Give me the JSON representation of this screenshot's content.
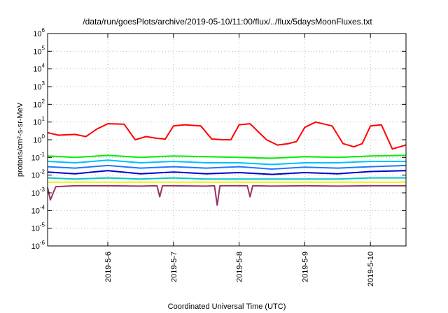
{
  "chart_data": {
    "type": "line",
    "title": "/data/run/goesPlots/archive/2019-05-10/11:00/flux/../flux/5daysMoonFluxes.txt",
    "xlabel": "Coordinated Universal Time (UTC)",
    "ylabel": "protons/cm²-s-sr-MeV",
    "y_scale": "log",
    "ylim": [
      1e-06,
      1000000.0
    ],
    "xlim": [
      "2019-05-05 02:00",
      "2019-05-10 13:00"
    ],
    "grid": true,
    "legend": "none",
    "x_ticks": [
      "2019-5-6",
      "2019-5-7",
      "2019-5-8",
      "2019-5-9",
      "2019-5-10"
    ],
    "y_ticks": [
      {
        "base": "10",
        "exp": "6"
      },
      {
        "base": "10",
        "exp": "5"
      },
      {
        "base": "10",
        "exp": "4"
      },
      {
        "base": "10",
        "exp": "3"
      },
      {
        "base": "10",
        "exp": "2"
      },
      {
        "base": "10",
        "exp": "1"
      },
      {
        "base": "10",
        "exp": "0"
      },
      {
        "base": "10",
        "exp": "-1"
      },
      {
        "base": "10",
        "exp": "-2"
      },
      {
        "base": "10",
        "exp": "-3"
      },
      {
        "base": "10",
        "exp": "-4"
      },
      {
        "base": "10",
        "exp": "-5"
      },
      {
        "base": "10",
        "exp": "-6"
      }
    ],
    "series": [
      {
        "color": "#ff0000",
        "x": [
          "05-05 02:00",
          "05-05 06:00",
          "05-05 12:00",
          "05-05 16:00",
          "05-05 20:00",
          "05-06 00:00",
          "05-06 06:00",
          "05-06 10:00",
          "05-06 14:00",
          "05-06 18:00",
          "05-06 21:00",
          "05-07 00:00",
          "05-07 04:00",
          "05-07 10:00",
          "05-07 14:00",
          "05-07 18:00",
          "05-07 21:00",
          "05-08 00:00",
          "05-08 04:00",
          "05-08 10:00",
          "05-08 14:00",
          "05-08 18:00",
          "05-08 21:00",
          "05-09 00:00",
          "05-09 04:00",
          "05-09 10:00",
          "05-09 14:00",
          "05-09 18:00",
          "05-09 21:00",
          "05-10 00:00",
          "05-10 04:00",
          "05-10 08:00",
          "05-10 13:00"
        ],
        "y": [
          2.5,
          1.8,
          2.0,
          1.5,
          4.0,
          8.0,
          7.5,
          1.0,
          1.5,
          1.2,
          1.1,
          6.0,
          7.0,
          6.0,
          1.1,
          1.0,
          1.0,
          7.0,
          8.0,
          1.0,
          0.5,
          0.6,
          0.8,
          5.0,
          10.0,
          6.0,
          0.6,
          0.4,
          0.6,
          6.0,
          7.0,
          0.3,
          0.5
        ]
      },
      {
        "color": "#00ee00",
        "x": [
          "05-05 02:00",
          "05-05 12:00",
          "05-06 00:00",
          "05-06 12:00",
          "05-07 00:00",
          "05-07 12:00",
          "05-08 00:00",
          "05-08 12:00",
          "05-09 00:00",
          "05-09 12:00",
          "05-10 00:00",
          "05-10 13:00"
        ],
        "y": [
          0.12,
          0.1,
          0.13,
          0.1,
          0.12,
          0.11,
          0.1,
          0.09,
          0.11,
          0.1,
          0.12,
          0.13
        ]
      },
      {
        "color": "#00bfff",
        "x": [
          "05-05 02:00",
          "05-05 12:00",
          "05-06 00:00",
          "05-06 12:00",
          "05-07 00:00",
          "05-07 12:00",
          "05-08 00:00",
          "05-08 12:00",
          "05-09 00:00",
          "05-09 12:00",
          "05-10 00:00",
          "05-10 13:00"
        ],
        "y": [
          0.06,
          0.05,
          0.07,
          0.05,
          0.06,
          0.05,
          0.05,
          0.04,
          0.05,
          0.05,
          0.06,
          0.06
        ]
      },
      {
        "color": "#1e78ff",
        "x": [
          "05-05 02:00",
          "05-05 12:00",
          "05-06 00:00",
          "05-06 12:00",
          "05-07 00:00",
          "05-07 12:00",
          "05-08 00:00",
          "05-08 12:00",
          "05-09 00:00",
          "05-09 12:00",
          "05-10 00:00",
          "05-10 13:00"
        ],
        "y": [
          0.03,
          0.025,
          0.035,
          0.025,
          0.03,
          0.025,
          0.03,
          0.022,
          0.028,
          0.025,
          0.03,
          0.035
        ]
      },
      {
        "color": "#0000cd",
        "x": [
          "05-05 02:00",
          "05-05 12:00",
          "05-06 00:00",
          "05-06 12:00",
          "05-07 00:00",
          "05-07 12:00",
          "05-08 00:00",
          "05-08 12:00",
          "05-09 00:00",
          "05-09 12:00",
          "05-10 00:00",
          "05-10 13:00"
        ],
        "y": [
          0.015,
          0.012,
          0.018,
          0.012,
          0.015,
          0.012,
          0.014,
          0.011,
          0.014,
          0.012,
          0.016,
          0.018
        ]
      },
      {
        "color": "#00c8c8",
        "x": [
          "05-05 02:00",
          "05-05 12:00",
          "05-06 00:00",
          "05-06 12:00",
          "05-07 00:00",
          "05-07 12:00",
          "05-08 00:00",
          "05-08 12:00",
          "05-09 00:00",
          "05-09 12:00",
          "05-10 00:00",
          "05-10 13:00"
        ],
        "y": [
          0.007,
          0.006,
          0.007,
          0.006,
          0.007,
          0.006,
          0.006,
          0.006,
          0.006,
          0.006,
          0.007,
          0.007
        ]
      },
      {
        "color": "#f0f000",
        "x": [
          "05-05 02:00",
          "05-05 12:00",
          "05-06 00:00",
          "05-06 12:00",
          "05-07 00:00",
          "05-07 12:00",
          "05-08 00:00",
          "05-08 12:00",
          "05-09 00:00",
          "05-09 12:00",
          "05-10 00:00",
          "05-10 13:00"
        ],
        "y": [
          0.004,
          0.004,
          0.004,
          0.004,
          0.004,
          0.004,
          0.004,
          0.004,
          0.004,
          0.004,
          0.004,
          0.004
        ]
      },
      {
        "color": "#993366",
        "x": [
          "05-05 02:00",
          "05-05 03:00",
          "05-05 05:00",
          "05-05 12:00",
          "05-06 00:00",
          "05-06 12:00",
          "05-06 18:00",
          "05-06 19:00",
          "05-06 20:00",
          "05-07 00:00",
          "05-07 12:00",
          "05-07 15:00",
          "05-07 16:00",
          "05-07 17:00",
          "05-08 00:00",
          "05-08 03:00",
          "05-08 04:00",
          "05-08 05:00",
          "05-08 12:00",
          "05-09 00:00",
          "05-09 12:00",
          "05-10 00:00",
          "05-10 13:00"
        ],
        "y": [
          0.002,
          0.0004,
          0.0022,
          0.0025,
          0.0025,
          0.0024,
          0.0025,
          0.0006,
          0.0025,
          0.0025,
          0.0024,
          0.0025,
          0.0002,
          0.0025,
          0.0025,
          0.0025,
          0.0006,
          0.0025,
          0.0024,
          0.0025,
          0.0024,
          0.0025,
          0.0025
        ]
      }
    ]
  }
}
